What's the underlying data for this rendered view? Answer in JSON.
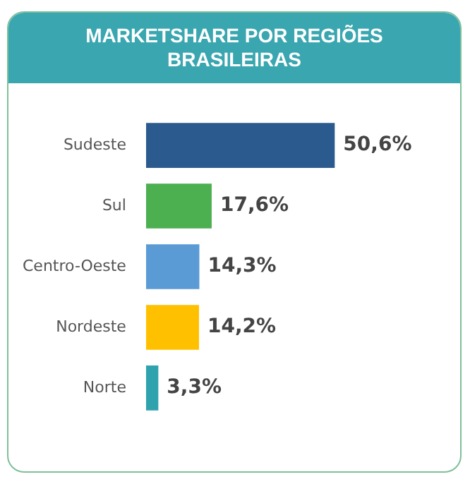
{
  "chart_data": {
    "type": "bar",
    "orientation": "horizontal",
    "title": "MARKETSHARE POR REGIÕES BRASILEIRAS",
    "categories": [
      "Sudeste",
      "Sul",
      "Centro-Oeste",
      "Nordeste",
      "Norte"
    ],
    "values": [
      50.6,
      17.6,
      14.3,
      14.2,
      3.3
    ],
    "colors": [
      "#2b5b8e",
      "#4caf50",
      "#5b9bd5",
      "#ffc000",
      "#2ea3ad"
    ],
    "value_labels": [
      "50,6%",
      "17,6%",
      "14,3%",
      "14,2%",
      "3,3%"
    ],
    "legend": false
  }
}
